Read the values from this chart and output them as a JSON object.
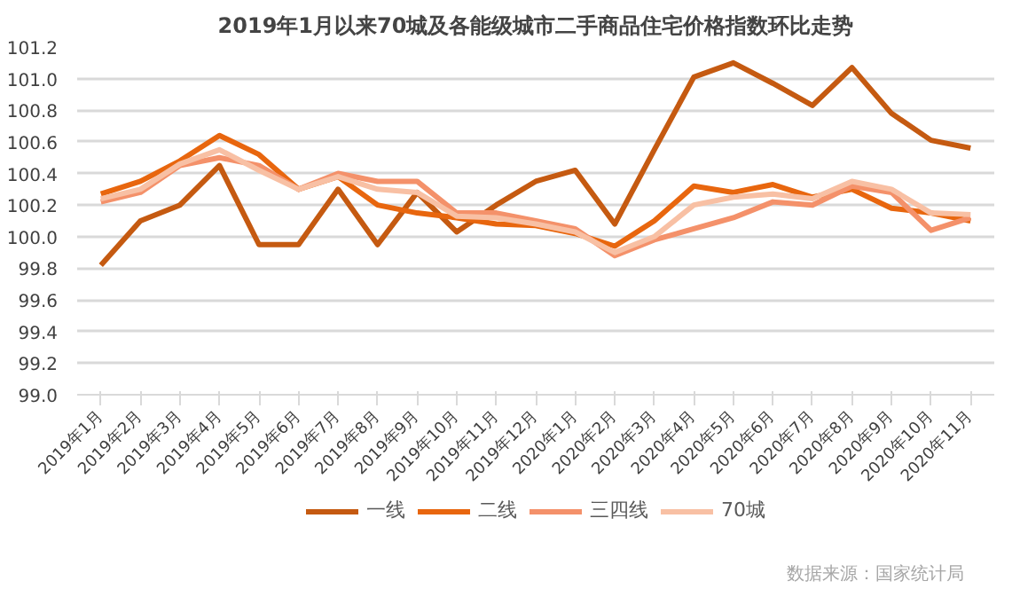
{
  "chart_data": {
    "type": "line",
    "title": "2019年1月以来70城及各能级城市二手商品住宅价格指数环比走势",
    "categories": [
      "2019年1月",
      "2019年2月",
      "2019年3月",
      "2019年4月",
      "2019年5月",
      "2019年6月",
      "2019年7月",
      "2019年8月",
      "2019年9月",
      "2019年10月",
      "2019年11月",
      "2019年12月",
      "2020年1月",
      "2020年2月",
      "2020年3月",
      "2020年4月",
      "2020年5月",
      "2020年6月",
      "2020年7月",
      "2020年8月",
      "2020年9月",
      "2020年10月",
      "2020年11月"
    ],
    "series": [
      {
        "name": "一线",
        "color": "#c55a11",
        "values": [
          99.82,
          100.1,
          100.2,
          100.45,
          99.95,
          99.95,
          100.3,
          99.95,
          100.28,
          100.03,
          100.2,
          100.35,
          100.42,
          100.08,
          100.55,
          101.01,
          101.1,
          100.97,
          100.83,
          101.07,
          100.78,
          100.61,
          100.56
        ]
      },
      {
        "name": "二线",
        "color": "#e8660e",
        "values": [
          100.27,
          100.35,
          100.48,
          100.64,
          100.52,
          100.3,
          100.38,
          100.2,
          100.15,
          100.12,
          100.08,
          100.07,
          100.02,
          99.94,
          100.1,
          100.32,
          100.28,
          100.33,
          100.25,
          100.3,
          100.18,
          100.15,
          100.1
        ]
      },
      {
        "name": "三四线",
        "color": "#f4916a",
        "values": [
          100.22,
          100.28,
          100.45,
          100.5,
          100.45,
          100.3,
          100.4,
          100.35,
          100.35,
          100.15,
          100.15,
          100.1,
          100.05,
          99.88,
          99.98,
          100.05,
          100.12,
          100.22,
          100.2,
          100.32,
          100.28,
          100.04,
          100.12
        ]
      },
      {
        "name": "70城",
        "color": "#f8c0a4",
        "values": [
          100.24,
          100.3,
          100.46,
          100.55,
          100.42,
          100.3,
          100.38,
          100.3,
          100.28,
          100.13,
          100.12,
          100.08,
          100.03,
          99.9,
          100.0,
          100.2,
          100.25,
          100.27,
          100.24,
          100.35,
          100.3,
          100.15,
          100.14
        ]
      }
    ],
    "ylim": [
      99.0,
      101.2
    ],
    "yticks": [
      {
        "value": 99.0,
        "label": "99.0"
      },
      {
        "value": 99.2,
        "label": "99.2"
      },
      {
        "value": 99.4,
        "label": "99.4"
      },
      {
        "value": 99.6,
        "label": "99.6"
      },
      {
        "value": 99.8,
        "label": "99.8"
      },
      {
        "value": 100.0,
        "label": "100.0"
      },
      {
        "value": 100.2,
        "label": "100.2"
      },
      {
        "value": 100.4,
        "label": "100.4"
      },
      {
        "value": 100.6,
        "label": "100.6"
      },
      {
        "value": 100.8,
        "label": "100.8"
      },
      {
        "value": 101.0,
        "label": "101.0"
      },
      {
        "value": 101.2,
        "label": "101.2"
      }
    ],
    "grid": "y",
    "legend": "bottom",
    "line_style": "solid",
    "marker": "none",
    "annotations": [
      "数据来源：国家统计局"
    ]
  }
}
